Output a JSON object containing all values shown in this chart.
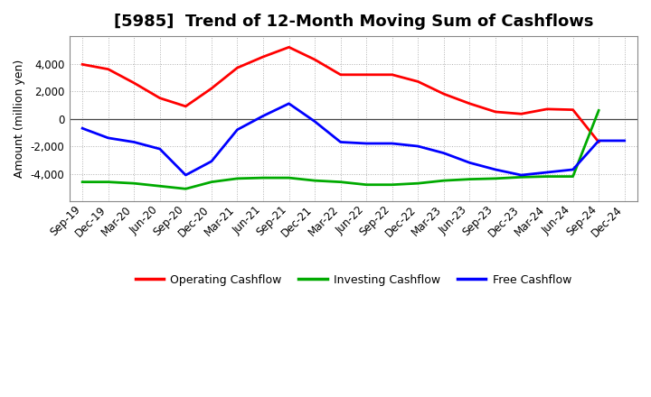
{
  "title": "[5985]  Trend of 12-Month Moving Sum of Cashflows",
  "ylabel": "Amount (million yen)",
  "x_labels": [
    "Sep-19",
    "Dec-19",
    "Mar-20",
    "Jun-20",
    "Sep-20",
    "Dec-20",
    "Mar-21",
    "Jun-21",
    "Sep-21",
    "Dec-21",
    "Mar-22",
    "Jun-22",
    "Sep-22",
    "Dec-22",
    "Mar-23",
    "Jun-23",
    "Sep-23",
    "Dec-23",
    "Mar-24",
    "Jun-24",
    "Sep-24",
    "Dec-24"
  ],
  "operating": [
    3950,
    3600,
    2600,
    1500,
    900,
    2200,
    3700,
    4500,
    5200,
    4300,
    3200,
    3200,
    3200,
    2700,
    1800,
    1100,
    500,
    350,
    700,
    650,
    -1700,
    null
  ],
  "investing": [
    -4600,
    -4600,
    -4700,
    -4900,
    -5100,
    -4600,
    -4350,
    -4300,
    -4300,
    -4500,
    -4600,
    -4800,
    -4800,
    -4700,
    -4500,
    -4400,
    -4350,
    -4250,
    -4200,
    -4200,
    600,
    null
  ],
  "free": [
    -700,
    -1400,
    -1700,
    -2200,
    -4100,
    -3100,
    -800,
    200,
    1100,
    -200,
    -1700,
    -1800,
    -1800,
    -2000,
    -2500,
    -3200,
    -3700,
    -4100,
    -3900,
    -3700,
    -1600,
    -1600
  ],
  "ylim": [
    -6000,
    6000
  ],
  "yticks": [
    -4000,
    -2000,
    0,
    2000,
    4000
  ],
  "colors": {
    "operating": "#ff0000",
    "investing": "#00aa00",
    "free": "#0000ff"
  },
  "legend_labels": [
    "Operating Cashflow",
    "Investing Cashflow",
    "Free Cashflow"
  ],
  "background_color": "#ffffff",
  "grid_color": "#b0b0b0",
  "title_fontsize": 13,
  "axis_fontsize": 8.5,
  "ylabel_fontsize": 9,
  "linewidth": 2.0
}
